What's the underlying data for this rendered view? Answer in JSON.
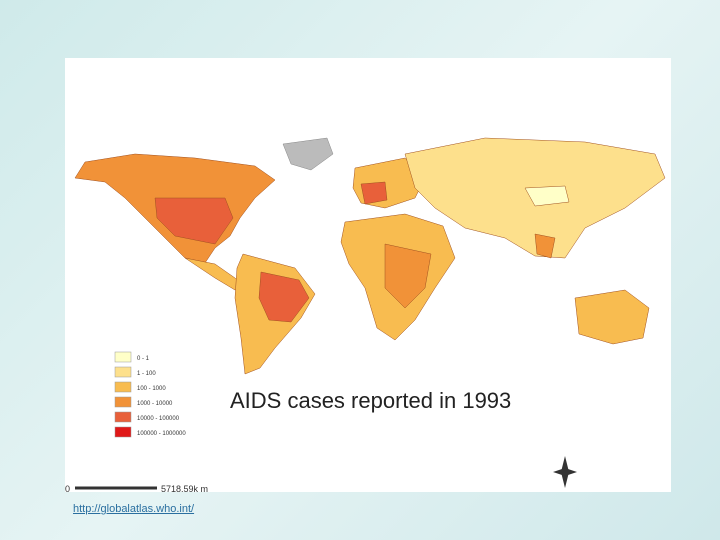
{
  "map": {
    "title": "AIDS cases reported in 1993",
    "legend": [
      {
        "label": "0 - 1",
        "color": "#ffffc8"
      },
      {
        "label": "1 - 100",
        "color": "#fde08c"
      },
      {
        "label": "100 - 1000",
        "color": "#f8bc50"
      },
      {
        "label": "1000 - 10000",
        "color": "#f19238"
      },
      {
        "label": "10000 - 100000",
        "color": "#e8603a"
      },
      {
        "label": "100000 - 1000000",
        "color": "#e01818"
      }
    ],
    "scale": {
      "start": "0",
      "end": "5718.59k m"
    }
  },
  "footer": {
    "link": "http://globalatlas.who.int/"
  }
}
